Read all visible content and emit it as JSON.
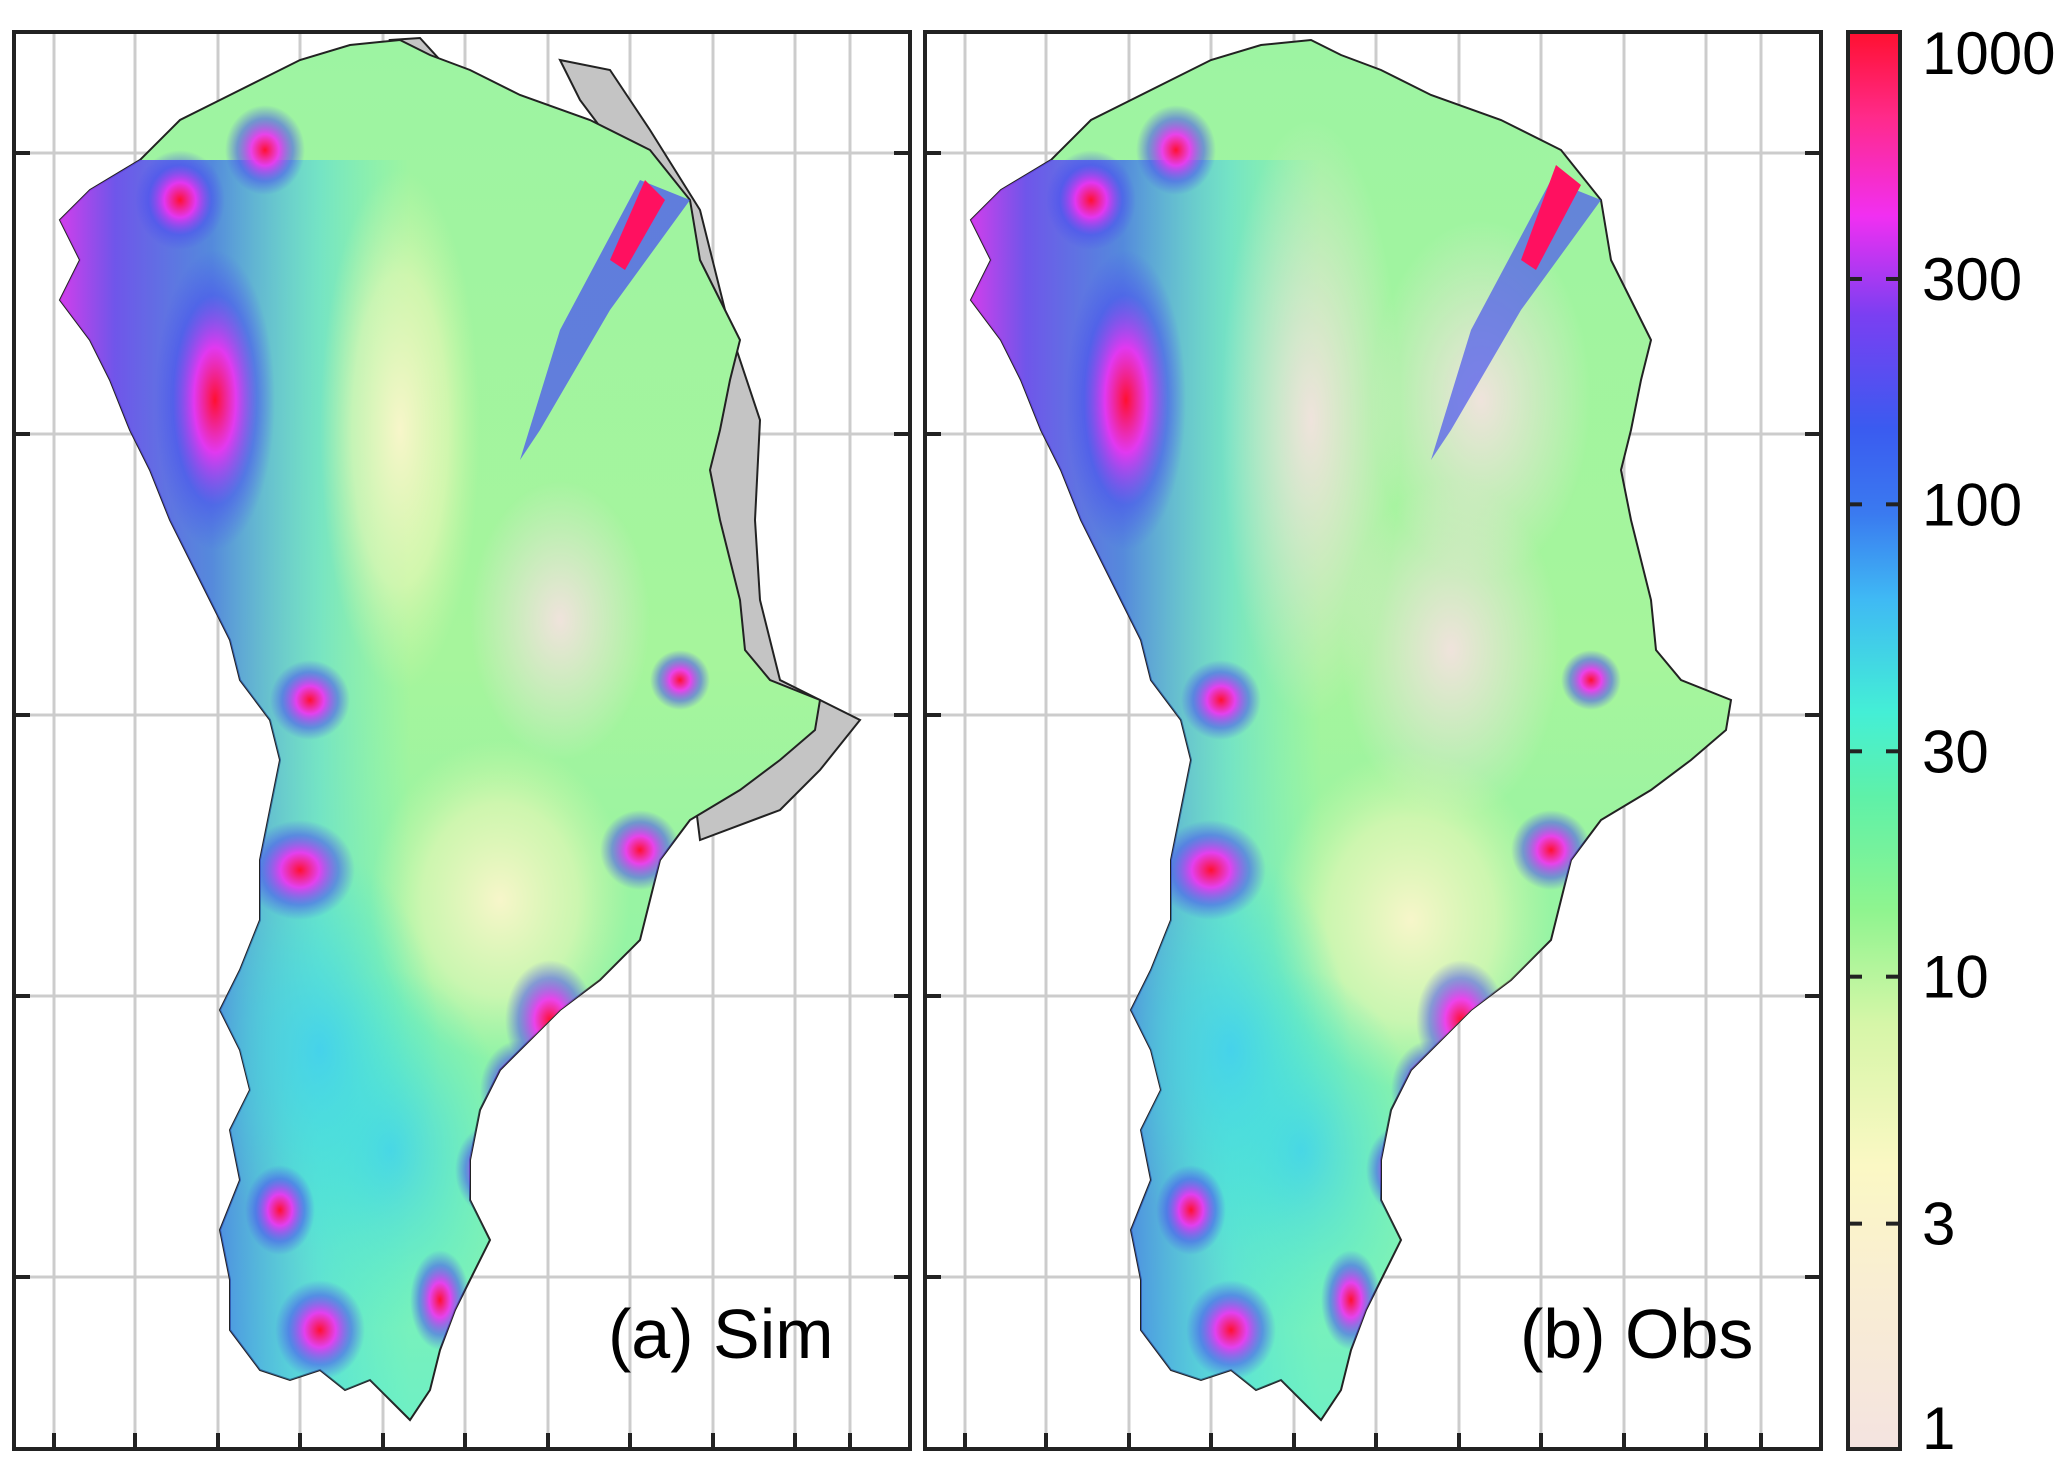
{
  "panels": [
    {
      "id": "sim",
      "label": "(a) Sim"
    },
    {
      "id": "obs",
      "label": "(b) Obs"
    }
  ],
  "colorbar": {
    "scale": "log",
    "range": [
      1,
      1000
    ],
    "ticks": [
      {
        "value": 1000,
        "label": "1000"
      },
      {
        "value": 300,
        "label": "300"
      },
      {
        "value": 100,
        "label": "100"
      },
      {
        "value": 30,
        "label": "30"
      },
      {
        "value": 10,
        "label": "10"
      },
      {
        "value": 3,
        "label": "3"
      },
      {
        "value": 1,
        "label": "1"
      }
    ],
    "colors": [
      "#f4e3e0",
      "#fbf8c4",
      "#b6f6a6",
      "#77f38f",
      "#44efd6",
      "#3fb9f4",
      "#3a5bf0",
      "#7a3ff2",
      "#f12ff2",
      "#ff1030"
    ]
  },
  "colors": {
    "no_data": "#c4c4c4",
    "frame": "#222222",
    "grid": "#cccccc"
  }
}
